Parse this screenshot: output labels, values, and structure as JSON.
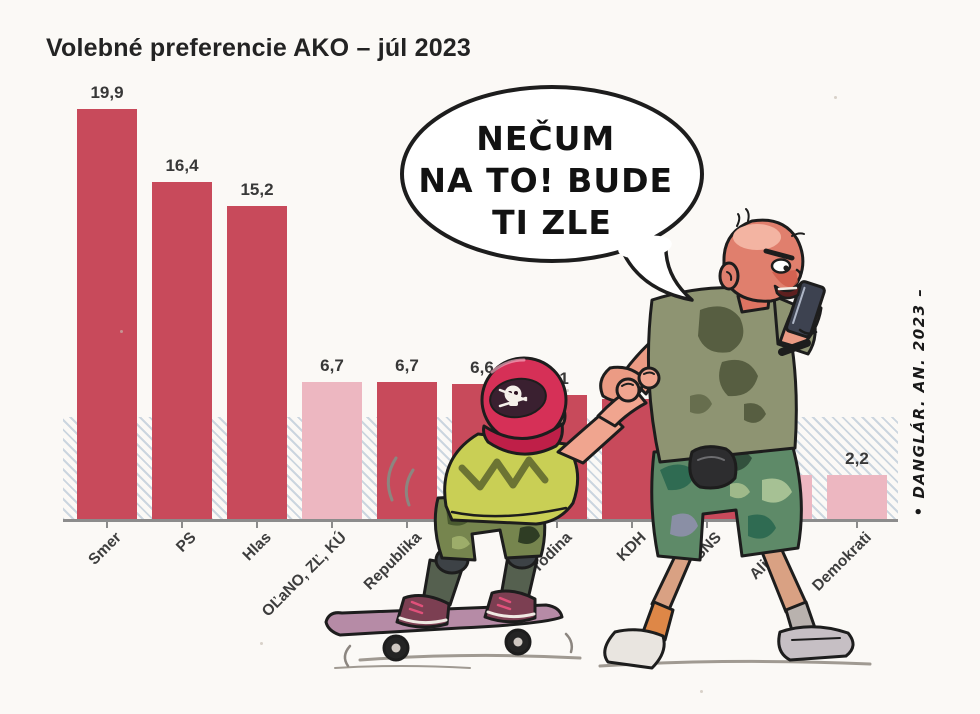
{
  "title": "Volebné preferencie AKO – júl 2023",
  "speech_bubble": {
    "lines": [
      "NEČUM",
      "NA TO! BUDE",
      "TI ZLE"
    ]
  },
  "signature": "• DANGLÁR. AN. 2023 –",
  "colors": {
    "bar_dark": "#c84a5b",
    "bar_light": "#edb7c1",
    "axis": "#8c8c8c",
    "title_text": "#232323",
    "boy_cap": "#d63057",
    "boy_shirt": "#c9cf55",
    "man_shirt": "#8e9472",
    "man_face": "#e07f6d"
  },
  "chart_data": {
    "type": "bar",
    "title": "Volebné preferencie AKO – júl 2023",
    "categories": [
      "Smer",
      "PS",
      "Hlas",
      "OĽaNO, ZĽ, KÚ",
      "Republika",
      "",
      "Sme rodina",
      "KDH",
      "SNS",
      "Aliancia",
      "Demokrati"
    ],
    "values": [
      19.9,
      16.4,
      15.2,
      6.7,
      6.7,
      6.6,
      6.1,
      5.9,
      5.5,
      2.2,
      2.2
    ],
    "values_display": [
      "19,9",
      "16,4",
      "15,2",
      "6,7",
      "6,7",
      "6,6",
      "6,1",
      "",
      "",
      "2,2",
      "2,2"
    ],
    "bar_styles": [
      "dark",
      "dark",
      "dark",
      "light",
      "dark",
      "dark",
      "dark",
      "dark",
      "dark",
      "light",
      "light"
    ],
    "xlabel": "",
    "ylabel": "",
    "ylim": [
      0,
      21
    ],
    "grid": false,
    "legend": false,
    "threshold_band": {
      "from": 0,
      "to": 5
    }
  }
}
